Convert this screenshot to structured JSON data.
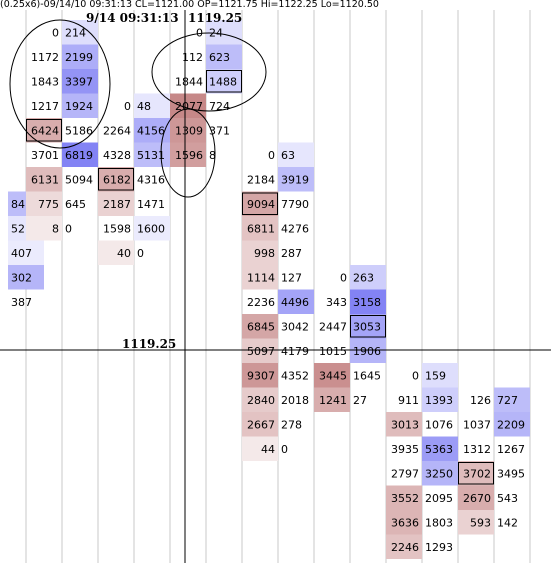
{
  "header": {
    "info": "(0.25x6)-09/14/10 09:31:13 CL=1121.00 OP=1121.75 Hi=1122.25 Lo=1120.50",
    "timestamp": "9/14 09:31:13",
    "crosshair_price": "1119.25",
    "price_label": "1119.25"
  },
  "colors": {
    "bid": "#b86a6a",
    "ask": "#5a5af0",
    "grid": "#c8c8c8",
    "highlight_border": "#000000"
  },
  "chart_data": {
    "type": "table",
    "title": "",
    "columns": [
      {
        "id": "c0",
        "rows": [
          {
            "row": 7,
            "bid": null,
            "ask": "84",
            "ask_shade": 0.4
          },
          {
            "row": 8,
            "bid": null,
            "ask": "52",
            "ask_shade": 0.15
          },
          {
            "row": 9,
            "bid": null,
            "ask": "407",
            "ask_shade": 0.12
          },
          {
            "row": 10,
            "bid": null,
            "ask": "302",
            "ask_shade": 0.45
          },
          {
            "row": 11,
            "bid": null,
            "ask": "387",
            "ask_shade": 0
          }
        ]
      },
      {
        "id": "c1",
        "rows": [
          {
            "row": 0,
            "bid": "0",
            "ask": "214",
            "ask_shade": 0.2
          },
          {
            "row": 1,
            "bid": "1172",
            "ask": "2199",
            "ask_shade": 0.5
          },
          {
            "row": 2,
            "bid": "1843",
            "ask": "3397",
            "ask_shade": 0.65
          },
          {
            "row": 3,
            "bid": "1217",
            "ask": "1924",
            "ask_shade": 0.45
          },
          {
            "row": 4,
            "bid": "6424",
            "ask": "5186",
            "bid_shade": 0.55,
            "highlight": "bid"
          },
          {
            "row": 5,
            "bid": "3701",
            "ask": "6819",
            "ask_shade": 0.75
          },
          {
            "row": 6,
            "bid": "6131",
            "ask": "5094",
            "bid_shade": 0.45
          },
          {
            "row": 7,
            "bid": "775",
            "ask": "645",
            "bid_shade": 0.25
          },
          {
            "row": 8,
            "bid": "8",
            "ask": "0",
            "bid_shade": 0.15
          }
        ]
      },
      {
        "id": "c2",
        "rows": [
          {
            "row": 3,
            "bid": "0",
            "ask": "48",
            "ask_shade": 0.15
          },
          {
            "row": 4,
            "bid": "2264",
            "ask": "4156",
            "ask_shade": 0.5
          },
          {
            "row": 5,
            "bid": "4328",
            "ask": "5131",
            "ask_shade": 0.4
          },
          {
            "row": 6,
            "bid": "6182",
            "ask": "4316",
            "bid_shade": 0.55,
            "highlight": "bid"
          },
          {
            "row": 7,
            "bid": "2187",
            "ask": "1471",
            "bid_shade": 0.3
          },
          {
            "row": 8,
            "bid": "1598",
            "ask": "1600",
            "ask_shade": 0.12
          },
          {
            "row": 9,
            "bid": "40",
            "ask": "0",
            "bid_shade": 0.15
          }
        ]
      },
      {
        "id": "c3",
        "rows": [
          {
            "row": 0,
            "bid": "0",
            "ask": "24",
            "ask_shade": 0.2
          },
          {
            "row": 1,
            "bid": "112",
            "ask": "623",
            "ask_shade": 0.4
          },
          {
            "row": 2,
            "bid": "1844",
            "ask": "1488",
            "ask_shade": 0.3,
            "highlight": "ask"
          },
          {
            "row": 3,
            "bid": "2077",
            "ask": "724",
            "bid_shade": 0.8
          },
          {
            "row": 4,
            "bid": "1309",
            "ask": "371",
            "bid_shade": 0.7
          },
          {
            "row": 5,
            "bid": "1596",
            "ask": "8",
            "bid_shade": 0.65
          }
        ]
      },
      {
        "id": "c4",
        "rows": [
          {
            "row": 5,
            "bid": "0",
            "ask": "63",
            "ask_shade": 0.15
          },
          {
            "row": 6,
            "bid": "2184",
            "ask": "3919",
            "ask_shade": 0.4
          },
          {
            "row": 7,
            "bid": "9094",
            "ask": "7790",
            "bid_shade": 0.6,
            "highlight": "bid"
          },
          {
            "row": 8,
            "bid": "6811",
            "ask": "4276",
            "bid_shade": 0.4
          },
          {
            "row": 9,
            "bid": "998",
            "ask": "287",
            "bid_shade": 0.3
          },
          {
            "row": 10,
            "bid": "1114",
            "ask": "127",
            "bid_shade": 0.3
          },
          {
            "row": 11,
            "bid": "2236",
            "ask": "4496",
            "ask_shade": 0.55
          },
          {
            "row": 12,
            "bid": "6845",
            "ask": "3042",
            "bid_shade": 0.6
          },
          {
            "row": 13,
            "bid": "5097",
            "ask": "4179",
            "bid_shade": 0.35
          },
          {
            "row": 14,
            "bid": "9307",
            "ask": "4352",
            "bid_shade": 0.7
          },
          {
            "row": 15,
            "bid": "2840",
            "ask": "2018",
            "bid_shade": 0.35
          },
          {
            "row": 16,
            "bid": "2667",
            "ask": "278",
            "bid_shade": 0.4
          },
          {
            "row": 17,
            "bid": "44",
            "ask": "0",
            "bid_shade": 0.15
          }
        ]
      },
      {
        "id": "c5",
        "rows": [
          {
            "row": 10,
            "bid": "0",
            "ask": "263",
            "ask_shade": 0.3
          },
          {
            "row": 11,
            "bid": "343",
            "ask": "3158",
            "ask_shade": 0.75
          },
          {
            "row": 12,
            "bid": "2447",
            "ask": "3053",
            "ask_shade": 0.55,
            "highlight": "ask"
          },
          {
            "row": 13,
            "bid": "1015",
            "ask": "1906",
            "ask_shade": 0.45
          },
          {
            "row": 14,
            "bid": "3445",
            "ask": "1645",
            "bid_shade": 0.75
          },
          {
            "row": 15,
            "bid": "1241",
            "ask": "27",
            "bid_shade": 0.55
          }
        ]
      },
      {
        "id": "c6",
        "rows": [
          {
            "row": 14,
            "bid": "0",
            "ask": "159",
            "ask_shade": 0.2
          },
          {
            "row": 15,
            "bid": "911",
            "ask": "1393",
            "ask_shade": 0.3
          },
          {
            "row": 16,
            "bid": "3013",
            "ask": "1076",
            "bid_shade": 0.45
          },
          {
            "row": 17,
            "bid": "3935",
            "ask": "5363",
            "ask_shade": 0.6
          },
          {
            "row": 18,
            "bid": "2797",
            "ask": "3250",
            "ask_shade": 0.45
          },
          {
            "row": 19,
            "bid": "3552",
            "ask": "2095",
            "bid_shade": 0.5
          },
          {
            "row": 20,
            "bid": "3636",
            "ask": "1803",
            "bid_shade": 0.5
          },
          {
            "row": 21,
            "bid": "2246",
            "ask": "1293",
            "bid_shade": 0.4
          }
        ]
      },
      {
        "id": "c7",
        "rows": [
          {
            "row": 15,
            "bid": "126",
            "ask": "727",
            "ask_shade": 0.4
          },
          {
            "row": 16,
            "bid": "1037",
            "ask": "2209",
            "ask_shade": 0.45
          },
          {
            "row": 17,
            "bid": "1312",
            "ask": "1267",
            "ask_shade": 0
          },
          {
            "row": 18,
            "bid": "3702",
            "ask": "3495",
            "bid_shade": 0.45,
            "highlight": "bid"
          },
          {
            "row": 19,
            "bid": "2670",
            "ask": "543",
            "bid_shade": 0.55
          },
          {
            "row": 20,
            "bid": "593",
            "ask": "142",
            "bid_shade": 0.3
          }
        ]
      }
    ],
    "crosshair": {
      "price": "1119.25"
    },
    "annotations": [
      "ellipse-1",
      "ellipse-2",
      "ellipse-3"
    ]
  }
}
